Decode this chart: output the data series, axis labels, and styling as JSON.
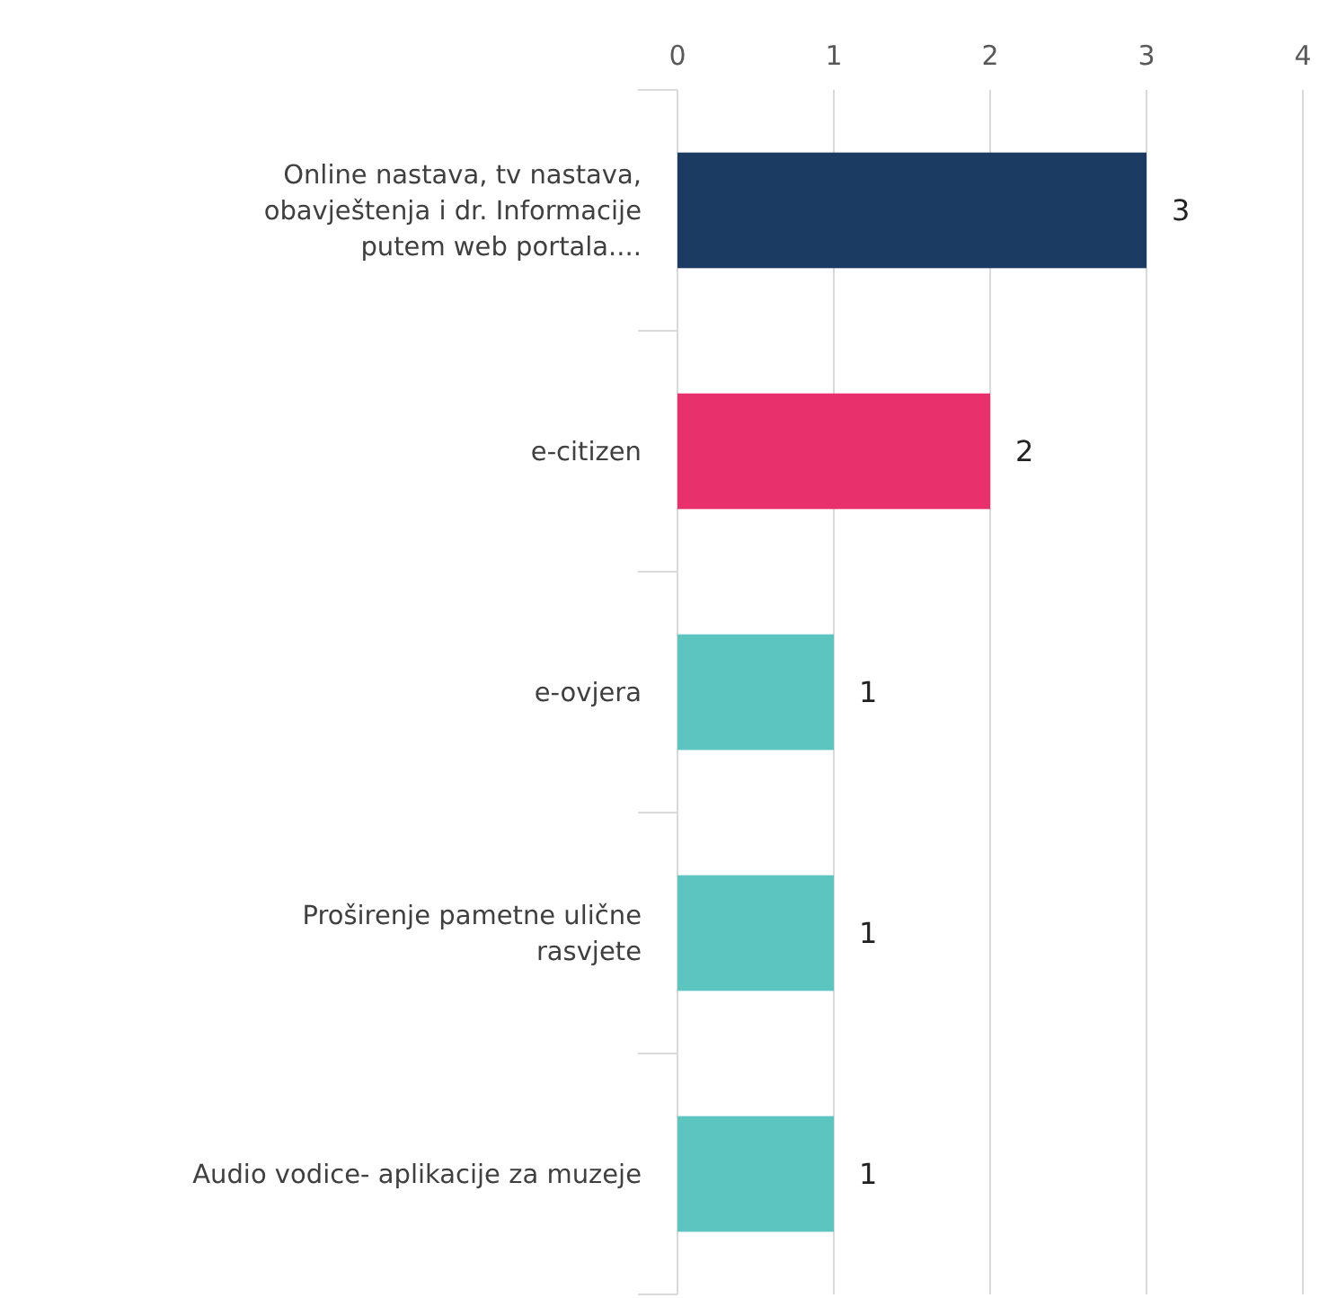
{
  "chart_data": {
    "type": "bar",
    "orientation": "horizontal",
    "categories": [
      "Online nastava, tv nastava, obavještenja i dr. Informacije putem web portala....",
      "e-citizen",
      "e-ovjera",
      "Proširenje pametne ulične rasvjete",
      "Audio vodice- aplikacije za muzeje"
    ],
    "values": [
      3,
      2,
      1,
      1,
      1
    ],
    "colors": [
      "#1b3b62",
      "#e8316c",
      "#5cc5c0",
      "#5cc5c0",
      "#5cc5c0"
    ],
    "xlim": [
      0,
      4
    ],
    "xticks": [
      0,
      1,
      2,
      3,
      4
    ],
    "grid": "x",
    "data_labels": true
  }
}
